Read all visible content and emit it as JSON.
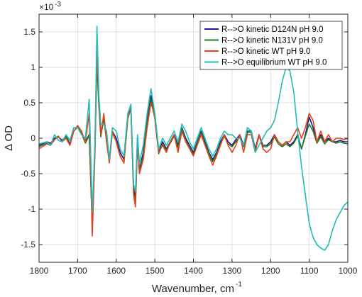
{
  "chart_data": {
    "type": "line",
    "title": "",
    "xlabel": "Wavenumber, cm",
    "xlabel_superscript": "-1",
    "ylabel": "Δ OD",
    "y_multiplier": "×10",
    "y_multiplier_exponent": "-3",
    "xlim": [
      1800,
      1000
    ],
    "ylim": [
      -1.75,
      1.75
    ],
    "x_reversed": true,
    "grid": true,
    "legend_position": "top-right",
    "x_ticks": [
      1800,
      1700,
      1600,
      1500,
      1400,
      1300,
      1200,
      1100,
      1000
    ],
    "x_tick_labels": [
      "1800",
      "1700",
      "1600",
      "1500",
      "1400",
      "1300",
      "1200",
      "1100",
      "1000"
    ],
    "y_ticks": [
      -1.5,
      -1,
      -0.5,
      0,
      0.5,
      1,
      1.5
    ],
    "y_tick_labels": [
      "-1.5",
      "-1",
      "-0.5",
      "0",
      "0.5",
      "1",
      "1.5"
    ],
    "series": [
      {
        "name": "R-->O kinetic D124N pH 9.0",
        "color": "#1a1a8c",
        "x": [
          1800,
          1780,
          1770,
          1760,
          1750,
          1740,
          1730,
          1720,
          1710,
          1700,
          1690,
          1680,
          1670,
          1662,
          1655,
          1650,
          1645,
          1640,
          1632,
          1625,
          1618,
          1610,
          1600,
          1590,
          1580,
          1570,
          1562,
          1555,
          1550,
          1545,
          1540,
          1530,
          1520,
          1510,
          1500,
          1490,
          1480,
          1470,
          1460,
          1450,
          1440,
          1430,
          1420,
          1410,
          1400,
          1390,
          1380,
          1370,
          1360,
          1350,
          1340,
          1330,
          1320,
          1310,
          1300,
          1290,
          1280,
          1270,
          1260,
          1250,
          1240,
          1230,
          1220,
          1210,
          1200,
          1190,
          1180,
          1170,
          1160,
          1150,
          1140,
          1130,
          1120,
          1110,
          1100,
          1090,
          1080,
          1070,
          1060,
          1050,
          1040,
          1030,
          1020,
          1010,
          1000
        ],
        "y": [
          -0.1,
          -0.05,
          -0.07,
          0.0,
          0.02,
          -0.03,
          0.03,
          -0.08,
          0.1,
          0.16,
          0.08,
          -0.05,
          0.05,
          -1.25,
          -0.1,
          1.2,
          0.5,
          0.05,
          0.3,
          0.0,
          -0.3,
          0.1,
          0.0,
          -0.2,
          -0.3,
          0.3,
          0.45,
          -0.7,
          -0.85,
          0.0,
          -0.45,
          -0.2,
          0.25,
          0.6,
          0.3,
          -0.2,
          -0.05,
          -0.15,
          -0.05,
          0.05,
          -0.1,
          0.15,
          0.0,
          -0.1,
          -0.2,
          -0.05,
          0.1,
          -0.05,
          -0.2,
          -0.3,
          -0.2,
          -0.05,
          0.05,
          -0.05,
          -0.1,
          -0.02,
          0.05,
          -0.1,
          0.1,
          0.1,
          -0.15,
          0.05,
          -0.1,
          -0.1,
          -0.05,
          0.05,
          -0.05,
          -0.1,
          -0.05,
          -0.1,
          -0.05,
          0.05,
          -0.15,
          0.05,
          0.3,
          0.15,
          -0.05,
          0.05,
          -0.05,
          0.0,
          -0.05,
          -0.05,
          -0.03,
          -0.05,
          -0.05
        ]
      },
      {
        "name": "R-->O kinetic N131V pH 9.0",
        "color": "#1e7a1e",
        "x": [
          1800,
          1780,
          1770,
          1760,
          1750,
          1740,
          1730,
          1720,
          1710,
          1700,
          1690,
          1680,
          1670,
          1662,
          1655,
          1650,
          1645,
          1640,
          1632,
          1625,
          1618,
          1610,
          1600,
          1590,
          1580,
          1570,
          1562,
          1555,
          1550,
          1545,
          1540,
          1530,
          1520,
          1510,
          1500,
          1490,
          1480,
          1470,
          1460,
          1450,
          1440,
          1430,
          1420,
          1410,
          1400,
          1390,
          1380,
          1370,
          1360,
          1350,
          1340,
          1330,
          1320,
          1310,
          1300,
          1290,
          1280,
          1270,
          1260,
          1250,
          1240,
          1230,
          1220,
          1210,
          1200,
          1190,
          1180,
          1170,
          1160,
          1150,
          1140,
          1130,
          1120,
          1110,
          1100,
          1090,
          1080,
          1070,
          1060,
          1050,
          1040,
          1030,
          1020,
          1010,
          1000
        ],
        "y": [
          -0.12,
          -0.07,
          -0.09,
          -0.02,
          0.03,
          -0.05,
          0.02,
          -0.1,
          0.1,
          0.16,
          0.07,
          -0.07,
          0.04,
          -1.2,
          -0.15,
          1.05,
          0.45,
          0.02,
          0.28,
          -0.05,
          -0.32,
          0.08,
          -0.05,
          -0.25,
          -0.35,
          0.28,
          0.42,
          -0.75,
          -0.9,
          -0.05,
          -0.48,
          -0.25,
          0.2,
          0.55,
          0.28,
          -0.22,
          -0.08,
          -0.17,
          -0.07,
          0.03,
          -0.13,
          0.13,
          -0.03,
          -0.12,
          -0.23,
          -0.07,
          0.08,
          -0.08,
          -0.22,
          -0.33,
          -0.22,
          -0.08,
          0.03,
          -0.08,
          -0.12,
          -0.05,
          0.03,
          -0.12,
          0.08,
          0.08,
          -0.17,
          0.03,
          -0.12,
          -0.12,
          -0.08,
          0.02,
          -0.08,
          -0.12,
          -0.08,
          -0.12,
          -0.07,
          0.03,
          -0.15,
          0.03,
          0.2,
          0.1,
          -0.07,
          0.02,
          -0.08,
          -0.02,
          -0.05,
          -0.07,
          -0.05,
          -0.07,
          -0.08
        ]
      },
      {
        "name": "R-->O kinetic WT pH 9.0",
        "color": "#e8401c",
        "x": [
          1800,
          1780,
          1770,
          1760,
          1750,
          1740,
          1730,
          1720,
          1710,
          1700,
          1690,
          1680,
          1670,
          1662,
          1655,
          1650,
          1645,
          1640,
          1632,
          1625,
          1618,
          1610,
          1600,
          1590,
          1580,
          1570,
          1562,
          1555,
          1550,
          1545,
          1540,
          1530,
          1520,
          1510,
          1500,
          1490,
          1480,
          1470,
          1460,
          1450,
          1440,
          1430,
          1420,
          1410,
          1400,
          1390,
          1380,
          1370,
          1360,
          1350,
          1340,
          1330,
          1320,
          1310,
          1300,
          1290,
          1280,
          1270,
          1260,
          1250,
          1240,
          1230,
          1220,
          1210,
          1200,
          1190,
          1180,
          1170,
          1160,
          1150,
          1140,
          1130,
          1120,
          1110,
          1100,
          1090,
          1080,
          1070,
          1060,
          1050,
          1040,
          1030,
          1020,
          1010,
          1000
        ],
        "y": [
          -0.15,
          -0.08,
          -0.1,
          -0.02,
          0.02,
          -0.05,
          0.0,
          -0.1,
          0.1,
          0.18,
          0.1,
          -0.05,
          0.35,
          -1.38,
          -0.2,
          1.28,
          0.55,
          0.05,
          0.35,
          -0.05,
          -0.35,
          0.1,
          -0.05,
          -0.25,
          -0.35,
          0.3,
          0.45,
          -0.8,
          -0.97,
          -0.05,
          -0.5,
          -0.3,
          0.15,
          0.5,
          0.3,
          -0.2,
          -0.1,
          -0.2,
          -0.05,
          0.05,
          -0.2,
          0.1,
          -0.05,
          -0.15,
          -0.25,
          -0.1,
          0.05,
          -0.1,
          -0.25,
          -0.38,
          -0.25,
          -0.1,
          0.05,
          -0.1,
          -0.2,
          -0.1,
          0.05,
          -0.2,
          0.05,
          0.05,
          -0.2,
          0.05,
          -0.15,
          -0.2,
          -0.15,
          0.05,
          -0.05,
          -0.1,
          -0.05,
          -0.05,
          0.05,
          0.15,
          0.0,
          0.15,
          0.35,
          0.25,
          -0.05,
          0.1,
          -0.05,
          0.05,
          -0.05,
          0.0,
          0.0,
          -0.02,
          0.0
        ]
      },
      {
        "name": "R-->O equilibrium WT pH 9.0",
        "color": "#1fbcb8",
        "x": [
          1800,
          1780,
          1770,
          1760,
          1750,
          1740,
          1730,
          1720,
          1710,
          1700,
          1690,
          1680,
          1670,
          1662,
          1655,
          1650,
          1645,
          1640,
          1632,
          1625,
          1618,
          1610,
          1600,
          1590,
          1580,
          1570,
          1562,
          1555,
          1550,
          1545,
          1540,
          1530,
          1520,
          1510,
          1500,
          1490,
          1480,
          1470,
          1460,
          1450,
          1440,
          1430,
          1420,
          1410,
          1400,
          1390,
          1380,
          1370,
          1360,
          1350,
          1340,
          1330,
          1320,
          1310,
          1300,
          1290,
          1280,
          1270,
          1260,
          1250,
          1240,
          1230,
          1220,
          1210,
          1200,
          1190,
          1180,
          1170,
          1160,
          1150,
          1140,
          1130,
          1120,
          1110,
          1100,
          1090,
          1080,
          1070,
          1060,
          1050,
          1040,
          1030,
          1020,
          1010,
          1000
        ],
        "y": [
          -0.08,
          -0.05,
          -0.1,
          0.05,
          -0.03,
          -0.05,
          0.05,
          -0.03,
          0.15,
          0.15,
          0.05,
          0.0,
          0.55,
          -1.05,
          -0.05,
          1.58,
          0.6,
          0.2,
          0.2,
          0.1,
          -0.3,
          0.15,
          0.1,
          -0.15,
          -0.25,
          0.35,
          0.48,
          -0.65,
          -0.75,
          0.05,
          -0.35,
          -0.1,
          0.35,
          0.7,
          0.35,
          -0.15,
          0.0,
          -0.1,
          0.0,
          0.1,
          -0.05,
          0.2,
          0.1,
          -0.05,
          -0.15,
          0.0,
          0.15,
          0.0,
          -0.15,
          -0.25,
          -0.15,
          0.0,
          0.1,
          0.05,
          0.05,
          0.0,
          0.0,
          -0.1,
          0.15,
          0.1,
          -0.2,
          -0.1,
          0.0,
          0.1,
          0.15,
          0.25,
          0.5,
          0.8,
          1.0,
          0.95,
          0.65,
          0.1,
          -0.4,
          -0.8,
          -1.2,
          -1.4,
          -1.5,
          -1.55,
          -1.58,
          -1.5,
          -1.3,
          -1.15,
          -1.05,
          -0.95,
          -0.9
        ]
      }
    ]
  }
}
